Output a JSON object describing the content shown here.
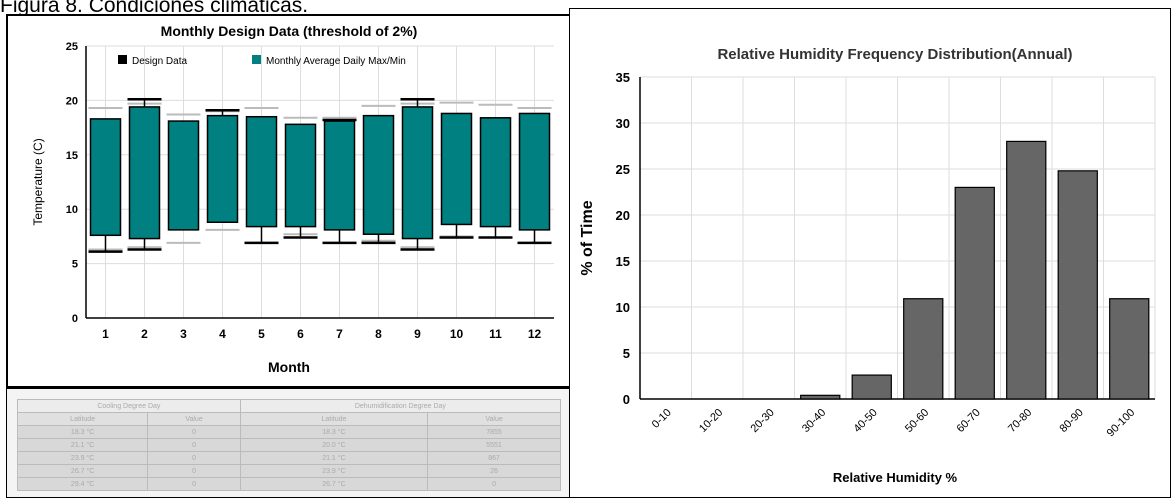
{
  "caption": "Figura 8. Condiciones climáticas.",
  "chart_data": [
    {
      "type": "box",
      "title": "Monthly Design Data (threshold of 2%)",
      "xlabel": "Month",
      "ylabel": "Temperature (C)",
      "ylim": [
        0,
        25
      ],
      "yticks": [
        0,
        5,
        10,
        15,
        20,
        25
      ],
      "grid": true,
      "legend": [
        "Design Data",
        "Monthly Average Daily Max/Min"
      ],
      "legend_position": "top",
      "colors": {
        "box": "#008080",
        "whisker": "#000000",
        "grey_cap": "#bbbbbb"
      },
      "categories": [
        "1",
        "2",
        "3",
        "4",
        "5",
        "6",
        "7",
        "8",
        "9",
        "10",
        "11",
        "12"
      ],
      "design_max": [
        null,
        20.1,
        null,
        19.1,
        null,
        null,
        18.2,
        null,
        20.1,
        null,
        null,
        null
      ],
      "design_min": [
        6.1,
        6.3,
        null,
        null,
        6.9,
        7.4,
        6.9,
        6.9,
        6.3,
        7.4,
        7.4,
        6.9
      ],
      "avg_max": [
        18.3,
        19.4,
        18.1,
        18.6,
        18.5,
        17.8,
        18.1,
        18.6,
        19.4,
        18.8,
        18.4,
        18.8
      ],
      "avg_min": [
        7.6,
        7.3,
        8.1,
        8.8,
        8.4,
        8.4,
        8.1,
        7.7,
        7.3,
        8.6,
        8.4,
        8.1
      ],
      "grey_max": [
        19.3,
        19.7,
        18.7,
        19.0,
        19.3,
        18.4,
        18.4,
        19.5,
        19.7,
        19.8,
        19.6,
        19.3
      ],
      "grey_min": [
        6.3,
        6.5,
        6.9,
        8.1,
        6.9,
        7.7,
        6.9,
        7.1,
        6.5,
        7.5,
        7.4,
        6.9
      ]
    },
    {
      "type": "bar",
      "title": "Relative Humidity Frequency Distribution(Annual)",
      "xlabel": "Relative Humidity %",
      "ylabel": "% of Time",
      "ylim": [
        0,
        35
      ],
      "yticks": [
        0,
        5,
        10,
        15,
        20,
        25,
        30,
        35
      ],
      "grid": true,
      "colors": {
        "bar": "#666666"
      },
      "categories": [
        "0-10",
        "10-20",
        "20-30",
        "30-40",
        "40-50",
        "50-60",
        "60-70",
        "70-80",
        "80-90",
        "90-100"
      ],
      "values": [
        0,
        0,
        0,
        0.4,
        2.6,
        10.9,
        23.0,
        28.0,
        24.8,
        10.9
      ]
    }
  ],
  "table": {
    "headers": [
      "Cooling Degree Day",
      "Dehumidification Degree Day"
    ],
    "subheaders": [
      "Latitude",
      "Value",
      "Latitude",
      "Value"
    ],
    "rows": [
      [
        "18.3 °C",
        "0",
        "18.3 °C",
        "7855"
      ],
      [
        "21.1 °C",
        "0",
        "20.0 °C",
        "5551"
      ],
      [
        "23.9 °C",
        "0",
        "21.1 °C",
        "867"
      ],
      [
        "26.7 °C",
        "0",
        "23.9 °C",
        "26"
      ],
      [
        "29.4 °C",
        "0",
        "26.7 °C",
        "0"
      ]
    ]
  }
}
